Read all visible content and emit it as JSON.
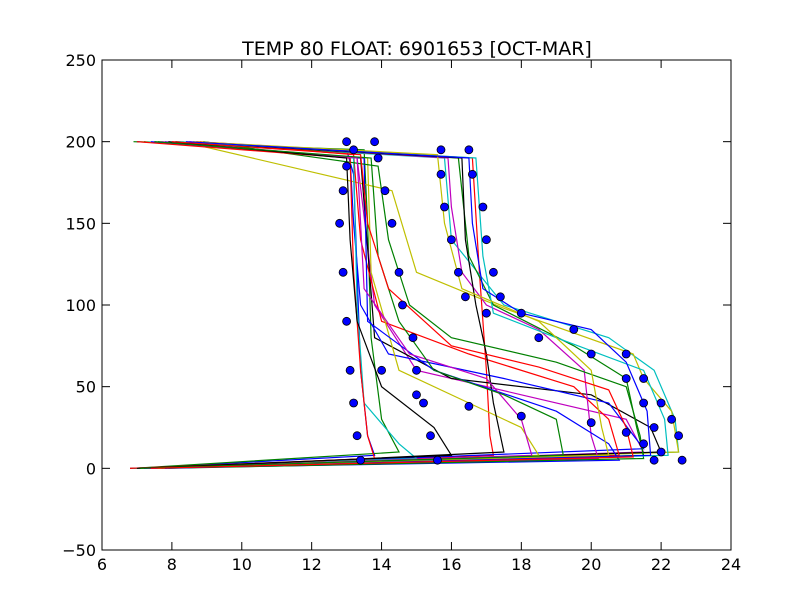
{
  "chart_data": {
    "type": "line",
    "title": "TEMP 80 FLOAT: 6901653 [OCT-MAR]",
    "xlabel": "",
    "ylabel": "",
    "xlim": [
      6,
      24
    ],
    "ylim": [
      -50,
      250
    ],
    "xticks": [
      "6",
      "8",
      "10",
      "12",
      "14",
      "16",
      "18",
      "20",
      "22",
      "24"
    ],
    "yticks": [
      "−50",
      "0",
      "50",
      "100",
      "150",
      "200",
      "250"
    ],
    "grid": false,
    "legend": "none",
    "marker_color": "#0000ff",
    "line_colors": [
      "#0000ff",
      "#008000",
      "#ff0000",
      "#00bfbf",
      "#bf00bf",
      "#bfbf00",
      "#000000"
    ],
    "marker_series": [
      {
        "values": [
          [
            13.0,
            200
          ],
          [
            13.2,
            195
          ],
          [
            13.0,
            185
          ],
          [
            12.9,
            170
          ],
          [
            12.8,
            150
          ],
          [
            12.9,
            120
          ],
          [
            13.0,
            90
          ],
          [
            13.1,
            60
          ],
          [
            13.2,
            40
          ],
          [
            13.3,
            20
          ],
          [
            13.4,
            5
          ]
        ]
      },
      {
        "values": [
          [
            13.8,
            200
          ],
          [
            13.9,
            190
          ],
          [
            14.1,
            170
          ],
          [
            14.3,
            150
          ],
          [
            14.5,
            120
          ],
          [
            14.6,
            100
          ],
          [
            14.9,
            80
          ],
          [
            15.0,
            60
          ],
          [
            15.2,
            40
          ],
          [
            15.4,
            20
          ],
          [
            15.6,
            5
          ]
        ]
      },
      {
        "values": [
          [
            15.7,
            195
          ],
          [
            15.7,
            180
          ],
          [
            15.8,
            160
          ],
          [
            16.0,
            140
          ],
          [
            16.2,
            120
          ],
          [
            16.4,
            105
          ],
          [
            17.0,
            95
          ],
          [
            18.5,
            80
          ],
          [
            20.0,
            70
          ],
          [
            21.0,
            55
          ],
          [
            21.5,
            40
          ],
          [
            21.8,
            25
          ],
          [
            22.0,
            10
          ]
        ]
      },
      {
        "values": [
          [
            16.5,
            195
          ],
          [
            16.6,
            180
          ],
          [
            16.9,
            160
          ],
          [
            17.0,
            140
          ],
          [
            17.2,
            120
          ],
          [
            17.4,
            105
          ],
          [
            18.0,
            95
          ],
          [
            19.5,
            85
          ],
          [
            21.0,
            70
          ],
          [
            21.5,
            55
          ],
          [
            22.0,
            40
          ],
          [
            22.3,
            30
          ],
          [
            22.5,
            20
          ],
          [
            22.6,
            5
          ]
        ]
      },
      {
        "values": [
          [
            14.0,
            60
          ],
          [
            15.0,
            45
          ],
          [
            16.5,
            38
          ],
          [
            18.0,
            32
          ],
          [
            20.0,
            28
          ],
          [
            21.0,
            22
          ],
          [
            21.5,
            15
          ],
          [
            21.8,
            5
          ]
        ]
      }
    ],
    "series": [
      {
        "color": "#0000ff",
        "values": [
          [
            7.0,
            200
          ],
          [
            13.0,
            195
          ],
          [
            13.2,
            180
          ],
          [
            13.3,
            120
          ],
          [
            13.4,
            60
          ],
          [
            13.6,
            20
          ],
          [
            13.8,
            8
          ],
          [
            7.0,
            0
          ]
        ]
      },
      {
        "color": "#008000",
        "values": [
          [
            6.9,
            200
          ],
          [
            13.5,
            195
          ],
          [
            13.6,
            150
          ],
          [
            13.7,
            80
          ],
          [
            14.0,
            30
          ],
          [
            14.5,
            10
          ],
          [
            6.9,
            0
          ]
        ]
      },
      {
        "color": "#ff0000",
        "values": [
          [
            8.7,
            200
          ],
          [
            16.6,
            190
          ],
          [
            16.8,
            120
          ],
          [
            17.0,
            60
          ],
          [
            17.1,
            20
          ],
          [
            17.2,
            8
          ],
          [
            7.5,
            0
          ]
        ]
      },
      {
        "color": "#00bfbf",
        "values": [
          [
            7.5,
            200
          ],
          [
            15.8,
            190
          ],
          [
            16.0,
            140
          ],
          [
            17.5,
            100
          ],
          [
            20.5,
            80
          ],
          [
            21.8,
            60
          ],
          [
            22.4,
            30
          ],
          [
            22.5,
            10
          ],
          [
            7.0,
            0
          ]
        ]
      },
      {
        "color": "#bf00bf",
        "values": [
          [
            8.0,
            200
          ],
          [
            13.3,
            190
          ],
          [
            13.8,
            100
          ],
          [
            15.0,
            60
          ],
          [
            18.0,
            45
          ],
          [
            21.0,
            30
          ],
          [
            21.5,
            10
          ],
          [
            7.2,
            0
          ]
        ]
      },
      {
        "color": "#bfbf00",
        "values": [
          [
            8.3,
            200
          ],
          [
            14.3,
            170
          ],
          [
            15.0,
            120
          ],
          [
            17.5,
            98
          ],
          [
            21.2,
            70
          ],
          [
            21.5,
            55
          ],
          [
            22.3,
            35
          ],
          [
            22.5,
            10
          ],
          [
            7.8,
            0
          ]
        ]
      },
      {
        "color": "#000000",
        "values": [
          [
            7.2,
            200
          ],
          [
            13.4,
            190
          ],
          [
            13.8,
            80
          ],
          [
            16.0,
            55
          ],
          [
            20.0,
            45
          ],
          [
            21.7,
            25
          ],
          [
            22.0,
            10
          ],
          [
            6.8,
            0
          ]
        ]
      },
      {
        "color": "#0000ff",
        "values": [
          [
            7.8,
            200
          ],
          [
            13.1,
            190
          ],
          [
            13.2,
            150
          ],
          [
            13.4,
            100
          ],
          [
            14.2,
            70
          ],
          [
            17.5,
            55
          ],
          [
            20.5,
            40
          ],
          [
            21.5,
            12
          ],
          [
            7.3,
            0
          ]
        ]
      },
      {
        "color": "#008000",
        "values": [
          [
            7.6,
            200
          ],
          [
            16.2,
            190
          ],
          [
            16.5,
            130
          ],
          [
            17.2,
            100
          ],
          [
            19.5,
            75
          ],
          [
            21.0,
            55
          ],
          [
            21.3,
            25
          ],
          [
            21.5,
            8
          ],
          [
            7.1,
            0
          ]
        ]
      },
      {
        "color": "#ff0000",
        "values": [
          [
            8.8,
            200
          ],
          [
            13.2,
            192
          ],
          [
            13.4,
            140
          ],
          [
            14.0,
            90
          ],
          [
            16.5,
            70
          ],
          [
            19.5,
            50
          ],
          [
            20.5,
            30
          ],
          [
            20.8,
            8
          ],
          [
            7.6,
            0
          ]
        ]
      },
      {
        "color": "#00bfbf",
        "values": [
          [
            7.3,
            200
          ],
          [
            13.2,
            190
          ],
          [
            13.3,
            100
          ],
          [
            13.5,
            40
          ],
          [
            14.5,
            15
          ],
          [
            15.0,
            6
          ],
          [
            6.9,
            0
          ]
        ]
      },
      {
        "color": "#bf00bf",
        "values": [
          [
            8.5,
            200
          ],
          [
            15.9,
            190
          ],
          [
            16.0,
            160
          ],
          [
            16.3,
            120
          ],
          [
            17.0,
            100
          ],
          [
            18.5,
            85
          ],
          [
            19.8,
            60
          ],
          [
            20.0,
            20
          ],
          [
            20.2,
            6
          ],
          [
            7.4,
            0
          ]
        ]
      },
      {
        "color": "#bfbf00",
        "values": [
          [
            7.1,
            200
          ],
          [
            13.6,
            190
          ],
          [
            13.7,
            120
          ],
          [
            14.5,
            60
          ],
          [
            16.5,
            40
          ],
          [
            18.0,
            25
          ],
          [
            18.5,
            8
          ],
          [
            7.0,
            0
          ]
        ]
      },
      {
        "color": "#000000",
        "values": [
          [
            8.1,
            200
          ],
          [
            16.3,
            190
          ],
          [
            16.4,
            140
          ],
          [
            16.7,
            100
          ],
          [
            17.0,
            70
          ],
          [
            17.2,
            40
          ],
          [
            17.5,
            10
          ],
          [
            7.7,
            0
          ]
        ]
      },
      {
        "color": "#0000ff",
        "values": [
          [
            7.4,
            200
          ],
          [
            13.5,
            190
          ],
          [
            13.6,
            90
          ],
          [
            15.5,
            60
          ],
          [
            19.0,
            35
          ],
          [
            20.5,
            15
          ],
          [
            20.8,
            5
          ],
          [
            7.2,
            0
          ]
        ]
      },
      {
        "color": "#008000",
        "values": [
          [
            8.9,
            200
          ],
          [
            13.9,
            185
          ],
          [
            14.2,
            140
          ],
          [
            14.8,
            100
          ],
          [
            16.0,
            80
          ],
          [
            19.0,
            65
          ],
          [
            21.0,
            50
          ],
          [
            21.4,
            20
          ],
          [
            21.5,
            6
          ],
          [
            7.9,
            0
          ]
        ]
      },
      {
        "color": "#ff0000",
        "values": [
          [
            7.0,
            200
          ],
          [
            13.1,
            190
          ],
          [
            13.2,
            120
          ],
          [
            13.4,
            60
          ],
          [
            13.6,
            20
          ],
          [
            13.8,
            6
          ],
          [
            6.8,
            0
          ]
        ]
      },
      {
        "color": "#00bfbf",
        "values": [
          [
            8.2,
            200
          ],
          [
            16.7,
            190
          ],
          [
            16.9,
            130
          ],
          [
            17.2,
            95
          ],
          [
            19.0,
            80
          ],
          [
            21.5,
            60
          ],
          [
            22.1,
            30
          ],
          [
            22.2,
            8
          ],
          [
            7.5,
            0
          ]
        ]
      },
      {
        "color": "#bf00bf",
        "values": [
          [
            7.7,
            200
          ],
          [
            13.3,
            190
          ],
          [
            13.5,
            110
          ],
          [
            14.8,
            70
          ],
          [
            17.0,
            55
          ],
          [
            18.0,
            30
          ],
          [
            18.3,
            8
          ],
          [
            7.3,
            0
          ]
        ]
      },
      {
        "color": "#bfbf00",
        "values": [
          [
            8.6,
            200
          ],
          [
            15.6,
            192
          ],
          [
            15.8,
            150
          ],
          [
            16.3,
            110
          ],
          [
            18.5,
            90
          ],
          [
            20.0,
            60
          ],
          [
            20.3,
            25
          ],
          [
            20.5,
            8
          ],
          [
            7.6,
            0
          ]
        ]
      },
      {
        "color": "#000000",
        "values": [
          [
            7.9,
            200
          ],
          [
            13.0,
            190
          ],
          [
            13.1,
            140
          ],
          [
            13.3,
            90
          ],
          [
            14.0,
            50
          ],
          [
            15.5,
            25
          ],
          [
            16.0,
            8
          ],
          [
            7.0,
            0
          ]
        ]
      },
      {
        "color": "#0000ff",
        "values": [
          [
            8.4,
            200
          ],
          [
            16.5,
            190
          ],
          [
            16.6,
            150
          ],
          [
            16.9,
            110
          ],
          [
            18.0,
            95
          ],
          [
            20.0,
            85
          ],
          [
            21.0,
            65
          ],
          [
            21.6,
            35
          ],
          [
            21.7,
            8
          ],
          [
            7.8,
            0
          ]
        ]
      },
      {
        "color": "#008000",
        "values": [
          [
            7.5,
            200
          ],
          [
            13.7,
            190
          ],
          [
            13.9,
            130
          ],
          [
            14.5,
            90
          ],
          [
            15.5,
            60
          ],
          [
            17.5,
            45
          ],
          [
            19.0,
            30
          ],
          [
            19.2,
            8
          ],
          [
            7.1,
            0
          ]
        ]
      },
      {
        "color": "#ff0000",
        "values": [
          [
            8.0,
            200
          ],
          [
            13.4,
            192
          ],
          [
            13.6,
            150
          ],
          [
            14.2,
            110
          ],
          [
            16.0,
            75
          ],
          [
            18.5,
            62
          ],
          [
            20.5,
            48
          ],
          [
            21.0,
            25
          ],
          [
            21.2,
            7
          ],
          [
            7.4,
            0
          ]
        ]
      }
    ]
  }
}
